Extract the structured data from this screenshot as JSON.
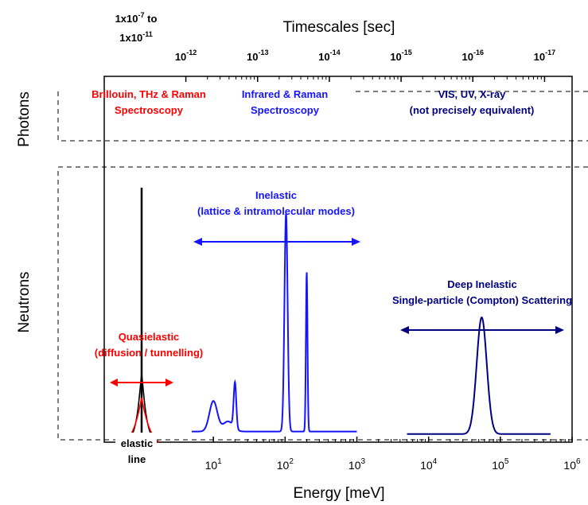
{
  "chart_data": {
    "type": "line",
    "xlabel": "Energy [meV]",
    "top_axis_label": "Timescales [sec]",
    "xscale": "log",
    "xlim": [
      1,
      1000000
    ],
    "ylim": [
      0,
      1
    ],
    "bottom_ticks": [
      {
        "value": 10,
        "base": "10",
        "exp": "1"
      },
      {
        "value": 100,
        "base": "10",
        "exp": "2"
      },
      {
        "value": 1000,
        "base": "10",
        "exp": "3"
      },
      {
        "value": 10000,
        "base": "10",
        "exp": "4"
      },
      {
        "value": 100000,
        "base": "10",
        "exp": "5"
      },
      {
        "value": 1000000,
        "base": "10",
        "exp": "6"
      }
    ],
    "top_ticks": [
      {
        "value": 4.135,
        "base": "10",
        "exp": "-12"
      },
      {
        "value": 41.35,
        "base": "10",
        "exp": "-13"
      },
      {
        "value": 413.5,
        "base": "10",
        "exp": "-14"
      },
      {
        "value": 4135,
        "base": "10",
        "exp": "-15"
      },
      {
        "value": 41350,
        "base": "10",
        "exp": "-16"
      },
      {
        "value": 413500,
        "base": "10",
        "exp": "-17"
      }
    ],
    "top_first_label": {
      "line1_base": "1x10",
      "line1_exp": "-7",
      "line1_suffix": " to",
      "line2_base": "1x10",
      "line2_exp": "-11"
    },
    "rows": {
      "photons": "Photons",
      "neutrons": "Neutrons"
    },
    "annotations": {
      "brillouin": [
        "Brillouin, THz & Raman",
        "Spectroscopy"
      ],
      "infrared": [
        "Infrared & Raman",
        "Spectroscopy"
      ],
      "vis": [
        "VIS, UV, X-ray",
        "(not precisely equivalent)"
      ],
      "inelastic": [
        "Inelastic",
        "(lattice & intramolecular modes)"
      ],
      "deep": [
        "Deep Inelastic",
        "Single-particle (Compton) Scattering"
      ],
      "quasi": [
        "Quasielastic",
        "(diffusion / tunnelling)"
      ],
      "elastic": [
        "elastic",
        "line"
      ]
    },
    "colors": {
      "red": "#ff0000",
      "blue": "#1414ff",
      "navy": "#000080",
      "black": "#000000"
    },
    "inelastic_series": {
      "name": "",
      "baseline": 0.02,
      "x_range": [
        5,
        1000
      ],
      "peaks": [
        {
          "center": 10,
          "height": 0.12,
          "width": 0.055
        },
        {
          "center": 16,
          "height": 0.04,
          "width": 0.07
        },
        {
          "center": 20,
          "height": 0.18,
          "width": 0.018
        },
        {
          "center": 103,
          "height": 0.86,
          "width": 0.022
        },
        {
          "center": 200,
          "height": 0.63,
          "width": 0.011
        }
      ]
    },
    "deep_series": {
      "name": "",
      "baseline": 0.01,
      "x_range": [
        5000,
        500000
      ],
      "peaks": [
        {
          "center": 55000,
          "height": 0.46,
          "width": 0.07
        }
      ]
    }
  }
}
